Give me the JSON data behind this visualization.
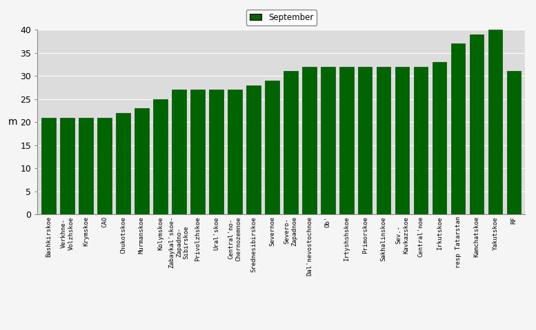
{
  "categories": [
    "Bashkirskoe",
    "Verkhne-\nVolzhskoe",
    "Krymskoe",
    "CAO",
    "Chukotskoe",
    "Murmanskoe",
    "Kolymskoe",
    "Zabaykal'skoe-\nZapadno-\nSibirskoe",
    "Privolzhskoe",
    "Ural'skoe",
    "Central'no-\nChernozemnoe",
    "Srednesibirskoe",
    "Severnoe",
    "Severo-\nZapadnoe",
    "Dal'nevostochnoe",
    "Ob'",
    "Irtyshshskoe",
    "Primorskoe",
    "Sakhalinskoe",
    "Sev.-\nKavkazskoe",
    "Central'noe",
    "Irkutskoe",
    "resp Tatarstan",
    "Kamchatskoe",
    "Yakutskoe",
    "RF"
  ],
  "values": [
    21,
    21,
    21,
    21,
    22,
    23,
    25,
    27,
    27,
    27,
    27,
    28,
    29,
    31,
    32,
    32,
    32,
    32,
    32,
    32,
    32,
    33,
    37,
    39,
    40,
    31
  ],
  "bar_color": "#006400",
  "bar_edge_color": "#004d00",
  "ylabel": "m",
  "ylim": [
    0,
    40
  ],
  "yticks": [
    0,
    5,
    10,
    15,
    20,
    25,
    30,
    35,
    40
  ],
  "legend_label": "September",
  "legend_color": "#006400",
  "bg_color": "#dcdcdc",
  "grid_color": "#ffffff",
  "ylabel_fontsize": 10,
  "tick_fontsize": 7
}
